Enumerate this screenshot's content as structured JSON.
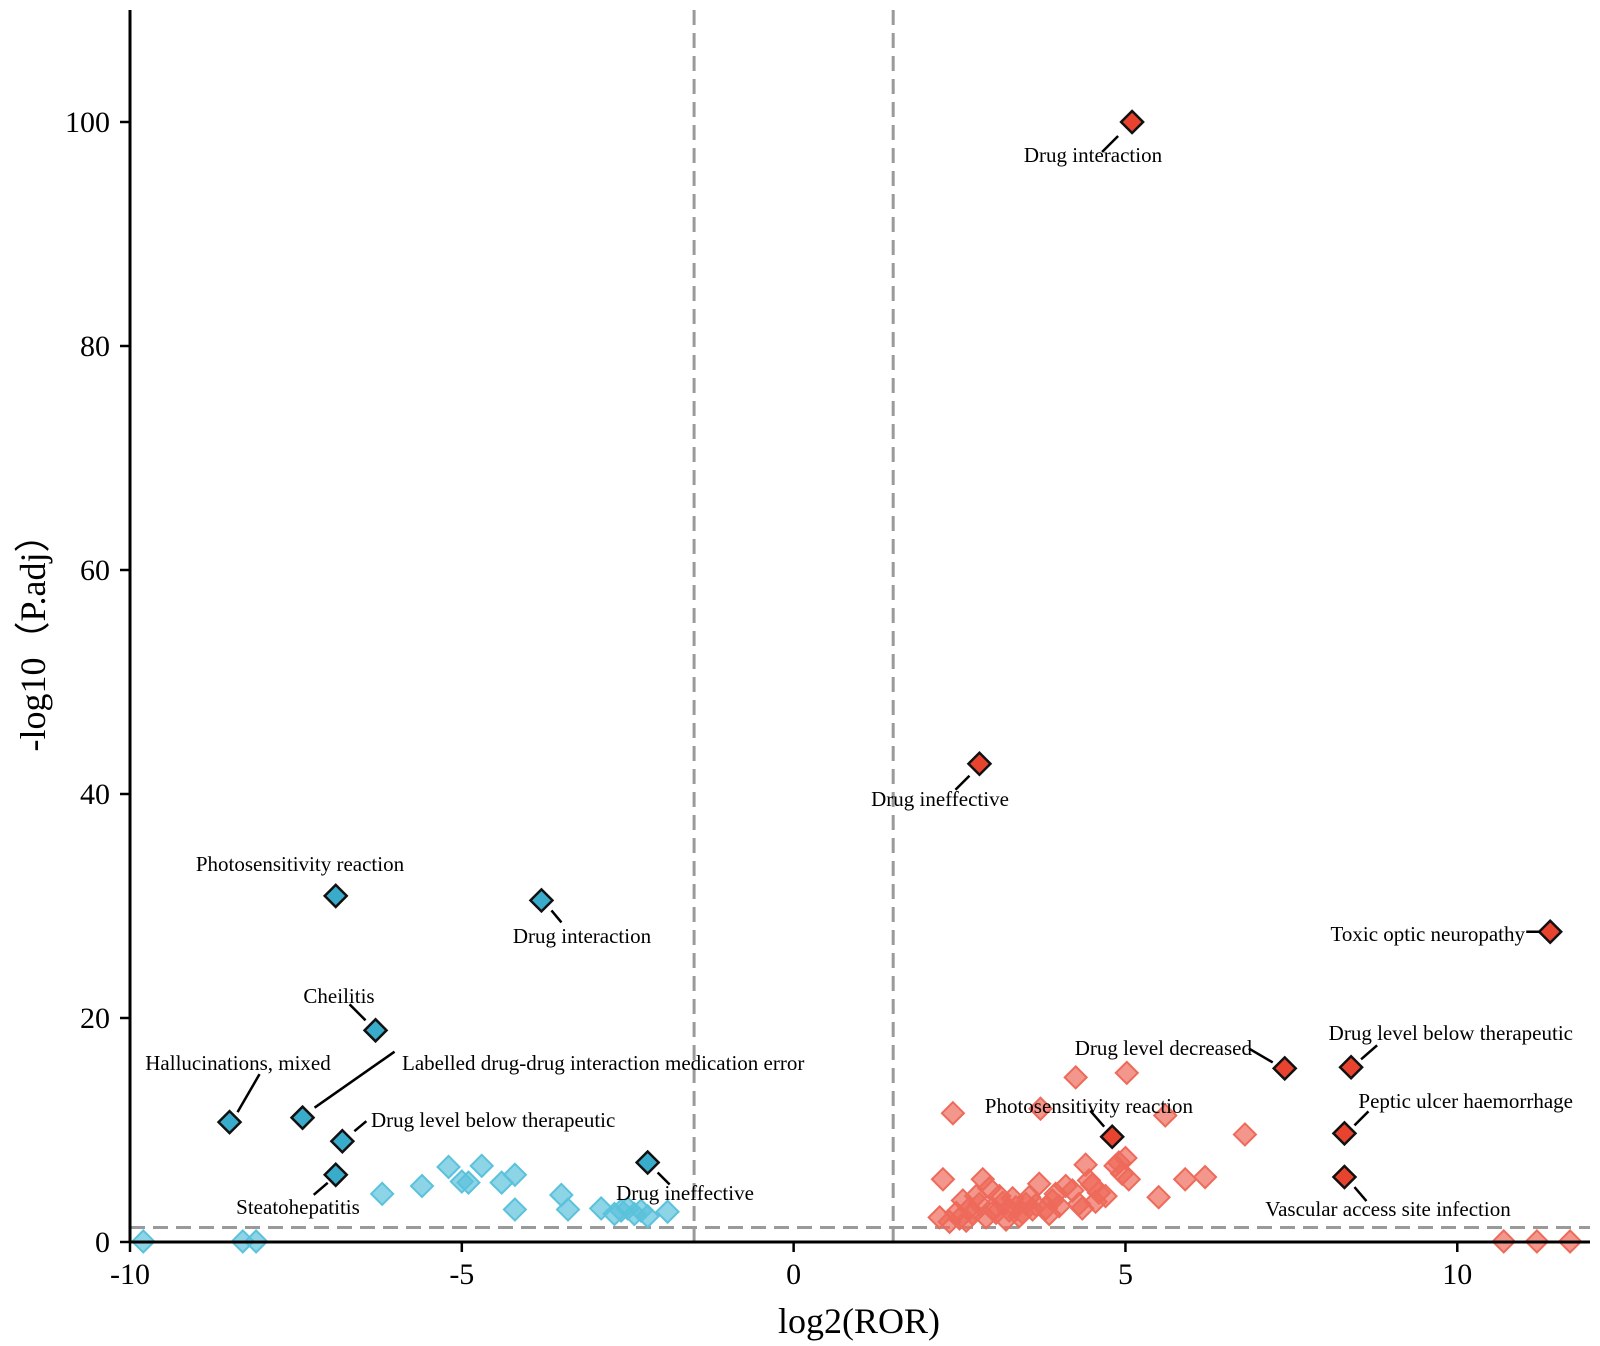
{
  "chart_data": {
    "type": "scatter",
    "title": "",
    "xlabel": "log2(ROR)",
    "ylabel": "-log10（P.adj）",
    "xlim": [
      -10,
      12
    ],
    "ylim": [
      0,
      110
    ],
    "x_ticks": [
      -10,
      -5,
      0,
      5,
      10
    ],
    "x_tick_labels": [
      "-10",
      "-5",
      "0",
      "5",
      "10"
    ],
    "y_ticks": [
      0,
      20,
      40,
      60,
      80,
      100
    ],
    "y_tick_labels": [
      "0",
      "20",
      "40",
      "60",
      "80",
      "100"
    ],
    "thresholds": {
      "x": [
        -1.5,
        1.5
      ],
      "y": 1.3
    },
    "grid": false,
    "colors": {
      "down": "#3AACCB",
      "down_light": "#5BC2DC",
      "up": "#E8432E",
      "up_light": "#EE6A5A",
      "threshold": "#9A9A9A"
    },
    "series": [
      {
        "name": "down_light",
        "points": [
          [
            -6.2,
            4.3
          ],
          [
            -5.6,
            5.0
          ],
          [
            -5.2,
            6.7
          ],
          [
            -5.0,
            5.4
          ],
          [
            -4.9,
            5.3
          ],
          [
            -4.7,
            6.8
          ],
          [
            -4.4,
            5.3
          ],
          [
            -4.2,
            6.0
          ],
          [
            -4.2,
            2.9
          ],
          [
            -3.5,
            4.2
          ],
          [
            -3.4,
            2.9
          ],
          [
            -2.9,
            3.0
          ],
          [
            -2.7,
            2.5
          ],
          [
            -2.6,
            2.8
          ],
          [
            -2.5,
            3.0
          ],
          [
            -2.4,
            2.5
          ],
          [
            -2.3,
            2.8
          ],
          [
            -2.2,
            2.3
          ],
          [
            -1.9,
            2.7
          ],
          [
            -9.8,
            0.05
          ],
          [
            -8.3,
            0.05
          ],
          [
            -8.1,
            0.05
          ]
        ]
      },
      {
        "name": "up_light",
        "points": [
          [
            2.2,
            2.2
          ],
          [
            2.25,
            5.6
          ],
          [
            2.35,
            1.8
          ],
          [
            2.4,
            11.5
          ],
          [
            2.45,
            2.6
          ],
          [
            2.5,
            2.1
          ],
          [
            2.55,
            3.7
          ],
          [
            2.6,
            1.9
          ],
          [
            2.65,
            3.0
          ],
          [
            2.7,
            2.5
          ],
          [
            2.75,
            4.1
          ],
          [
            2.8,
            3.4
          ],
          [
            2.85,
            5.6
          ],
          [
            2.9,
            2.2
          ],
          [
            2.95,
            4.8
          ],
          [
            3.0,
            3.0
          ],
          [
            3.05,
            2.6
          ],
          [
            3.1,
            4.1
          ],
          [
            3.15,
            3.5
          ],
          [
            3.2,
            2.0
          ],
          [
            3.25,
            2.8
          ],
          [
            3.3,
            3.9
          ],
          [
            3.35,
            3.1
          ],
          [
            3.4,
            2.3
          ],
          [
            3.45,
            2.6
          ],
          [
            3.5,
            3.4
          ],
          [
            3.55,
            4.0
          ],
          [
            3.6,
            2.9
          ],
          [
            3.65,
            3.3
          ],
          [
            3.7,
            5.2
          ],
          [
            3.72,
            11.9
          ],
          [
            3.8,
            3.0
          ],
          [
            3.85,
            2.5
          ],
          [
            3.9,
            3.7
          ],
          [
            3.95,
            4.3
          ],
          [
            4.0,
            3.2
          ],
          [
            4.1,
            5.0
          ],
          [
            4.2,
            4.6
          ],
          [
            4.25,
            14.7
          ],
          [
            4.3,
            3.4
          ],
          [
            4.35,
            3.0
          ],
          [
            4.4,
            6.9
          ],
          [
            4.45,
            5.5
          ],
          [
            4.5,
            5.1
          ],
          [
            4.55,
            3.6
          ],
          [
            4.6,
            4.4
          ],
          [
            4.7,
            4.1
          ],
          [
            4.85,
            6.8
          ],
          [
            4.9,
            7.1
          ],
          [
            4.95,
            6.1
          ],
          [
            5.0,
            7.5
          ],
          [
            5.02,
            15.1
          ],
          [
            5.05,
            5.6
          ],
          [
            5.5,
            4.0
          ],
          [
            5.6,
            11.3
          ],
          [
            5.9,
            5.6
          ],
          [
            6.2,
            5.8
          ],
          [
            6.8,
            9.6
          ],
          [
            10.7,
            0.05
          ],
          [
            11.2,
            0.05
          ],
          [
            11.7,
            0.05
          ]
        ]
      },
      {
        "name": "down_highlight",
        "points": [
          [
            -6.9,
            30.9
          ],
          [
            -3.8,
            30.5
          ],
          [
            -6.3,
            18.9
          ],
          [
            -8.5,
            10.7
          ],
          [
            -7.4,
            11.1
          ],
          [
            -6.8,
            9.0
          ],
          [
            -6.9,
            6.0
          ],
          [
            -2.2,
            7.1
          ]
        ]
      },
      {
        "name": "up_highlight",
        "points": [
          [
            5.1,
            100.0
          ],
          [
            2.8,
            42.7
          ],
          [
            11.4,
            27.7
          ],
          [
            7.4,
            15.5
          ],
          [
            8.4,
            15.6
          ],
          [
            4.8,
            9.4
          ],
          [
            8.3,
            9.7
          ],
          [
            8.3,
            5.8
          ]
        ]
      }
    ],
    "annotations": [
      {
        "text": "Drug interaction",
        "point": [
          5.1,
          100.0
        ],
        "anchor": "below-left"
      },
      {
        "text": "Drug ineffective",
        "point": [
          2.8,
          42.7
        ],
        "anchor": "below-left"
      },
      {
        "text": "Toxic optic neuropathy",
        "point": [
          11.4,
          27.7
        ],
        "anchor": "left"
      },
      {
        "text": "Drug level decreased",
        "point": [
          7.4,
          15.5
        ],
        "anchor": "upper-left"
      },
      {
        "text": "Drug level below therapeutic",
        "point": [
          8.4,
          15.6
        ],
        "anchor": "upper-right"
      },
      {
        "text": "Photosensitivity reaction",
        "point": [
          4.8,
          9.4
        ],
        "anchor": "upper-left"
      },
      {
        "text": "Peptic ulcer haemorrhage",
        "point": [
          8.3,
          9.7
        ],
        "anchor": "upper-right"
      },
      {
        "text": "Vascular access site infection",
        "point": [
          8.3,
          5.8
        ],
        "anchor": "below"
      },
      {
        "text": "Photosensitivity reaction",
        "point": [
          -6.9,
          30.9
        ],
        "anchor": "upper-left"
      },
      {
        "text": "Drug interaction",
        "point": [
          -3.8,
          30.5
        ],
        "anchor": "below-right"
      },
      {
        "text": "Cheilitis",
        "point": [
          -6.3,
          18.9
        ],
        "anchor": "upper-left"
      },
      {
        "text": "Hallucinations, mixed",
        "point": [
          -8.5,
          10.7
        ],
        "anchor": "upper-left"
      },
      {
        "text": "Labelled drug-drug interaction medication error",
        "point": [
          -7.4,
          11.1
        ],
        "anchor": "upper-right"
      },
      {
        "text": "Drug level below therapeutic",
        "point": [
          -6.8,
          9.0
        ],
        "anchor": "upper-right"
      },
      {
        "text": "Steatohepatitis",
        "point": [
          -6.9,
          6.0
        ],
        "anchor": "below-left"
      },
      {
        "text": "Drug ineffective",
        "point": [
          -2.2,
          7.1
        ],
        "anchor": "below-right"
      }
    ]
  }
}
